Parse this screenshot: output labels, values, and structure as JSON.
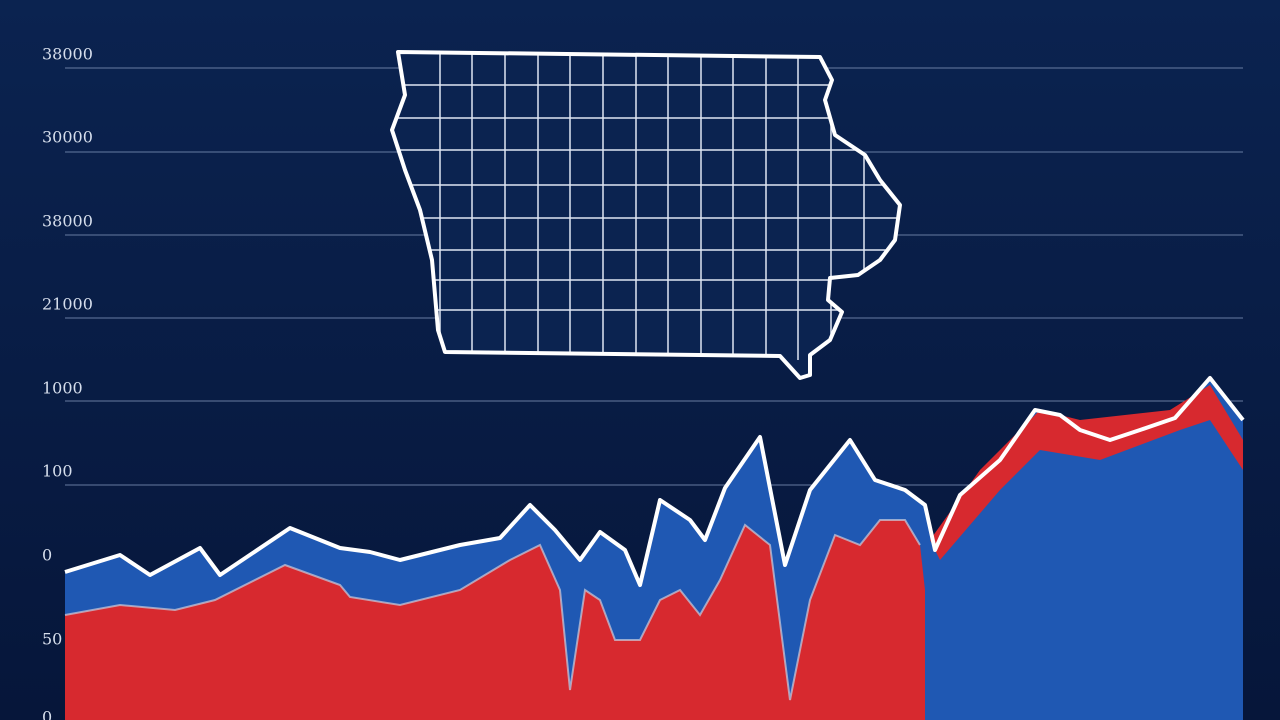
{
  "axis_labels": [
    "38000",
    "30000",
    "38000",
    "21000",
    "1000",
    "100",
    "0",
    "50",
    "0"
  ]
}
